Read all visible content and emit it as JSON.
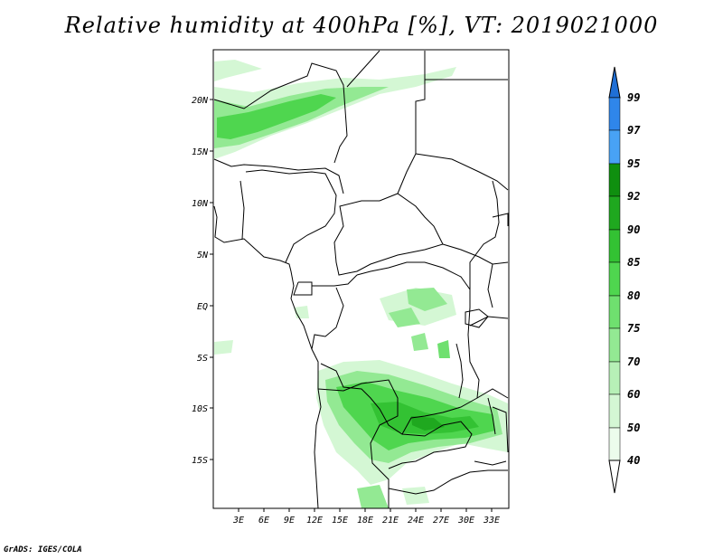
{
  "title": "Relative humidity at 400hPa [%], VT: 2019021000",
  "credit": "GrADS: IGES/COLA",
  "map": {
    "lat_labels": [
      "20N",
      "15N",
      "10N",
      "5N",
      "EQ",
      "5S",
      "10S",
      "15S"
    ],
    "lon_labels": [
      "3E",
      "6E",
      "9E",
      "12E",
      "15E",
      "18E",
      "21E",
      "24E",
      "27E",
      "30E",
      "33E"
    ]
  },
  "colorbar": {
    "levels": [
      "99",
      "97",
      "95",
      "92",
      "90",
      "85",
      "80",
      "75",
      "70",
      "60",
      "50",
      "40"
    ],
    "colors": [
      "#1f6fd6",
      "#2f86ea",
      "#48a2f5",
      "#0f8f0f",
      "#1fa81f",
      "#33c233",
      "#4fd64f",
      "#6fe06f",
      "#93e993",
      "#b7f0b7",
      "#d4f7d4",
      "#ecfcec",
      "#ffffff"
    ]
  },
  "colors": {
    "land_border": "#000000",
    "frame": "#000000"
  }
}
